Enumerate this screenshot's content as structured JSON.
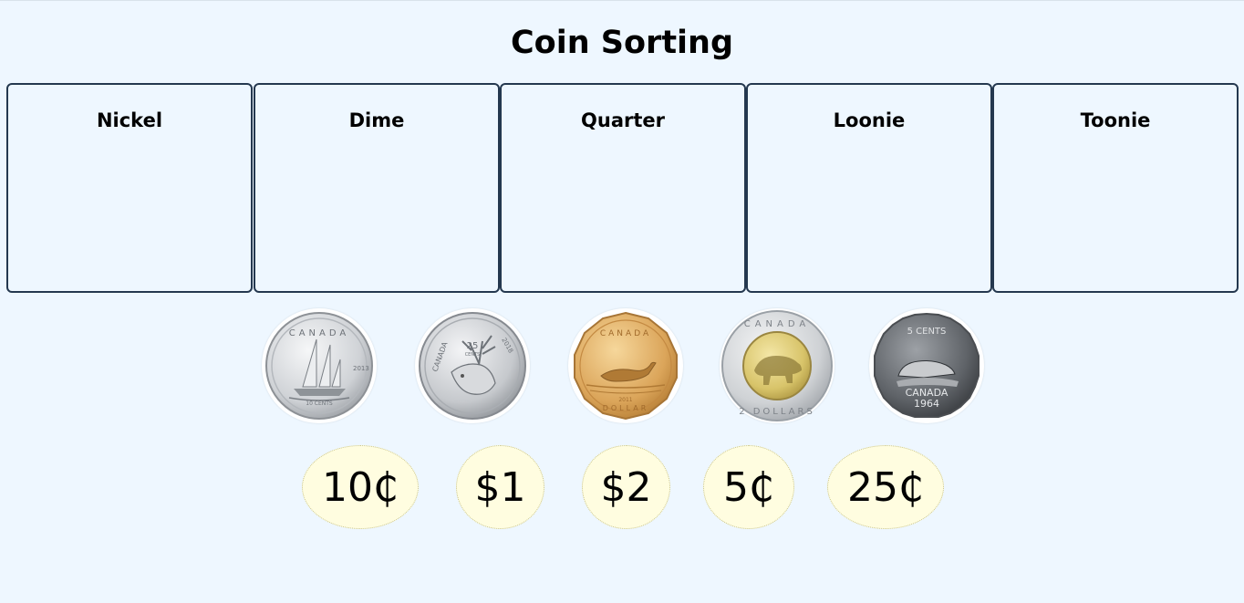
{
  "title": "Coin Sorting",
  "bins": [
    {
      "label": "Nickel"
    },
    {
      "label": "Dime"
    },
    {
      "label": "Quarter"
    },
    {
      "label": "Loonie"
    },
    {
      "label": "Toonie"
    }
  ],
  "coins": [
    {
      "name": "dime",
      "icon": "dime-schooner-icon",
      "color": "#d6d8dc",
      "inscription": "CANADA",
      "year": "2013",
      "denomination": "10 CENTS"
    },
    {
      "name": "quarter",
      "icon": "quarter-caribou-icon",
      "color": "#d2d4d8",
      "inscription": "CANADA",
      "year": "2018",
      "denomination": "25 CENTS"
    },
    {
      "name": "loonie",
      "icon": "loonie-loon-icon",
      "color": "#d9a85a",
      "inscription": "CANADA",
      "year": "2011",
      "denomination": "DOLLAR"
    },
    {
      "name": "toonie",
      "icon": "toonie-polar-bear-icon",
      "color": "#d8c46a",
      "inscription": "CANADA",
      "denomination": "2 DOLLARS"
    },
    {
      "name": "nickel",
      "icon": "nickel-beaver-icon",
      "color": "#6f7378",
      "inscription": "CANADA",
      "year": "1964",
      "denomination": "5 CENTS"
    }
  ],
  "values": [
    {
      "label": "10₵"
    },
    {
      "label": "$1"
    },
    {
      "label": "$2"
    },
    {
      "label": "5₵"
    },
    {
      "label": "25₵"
    }
  ]
}
